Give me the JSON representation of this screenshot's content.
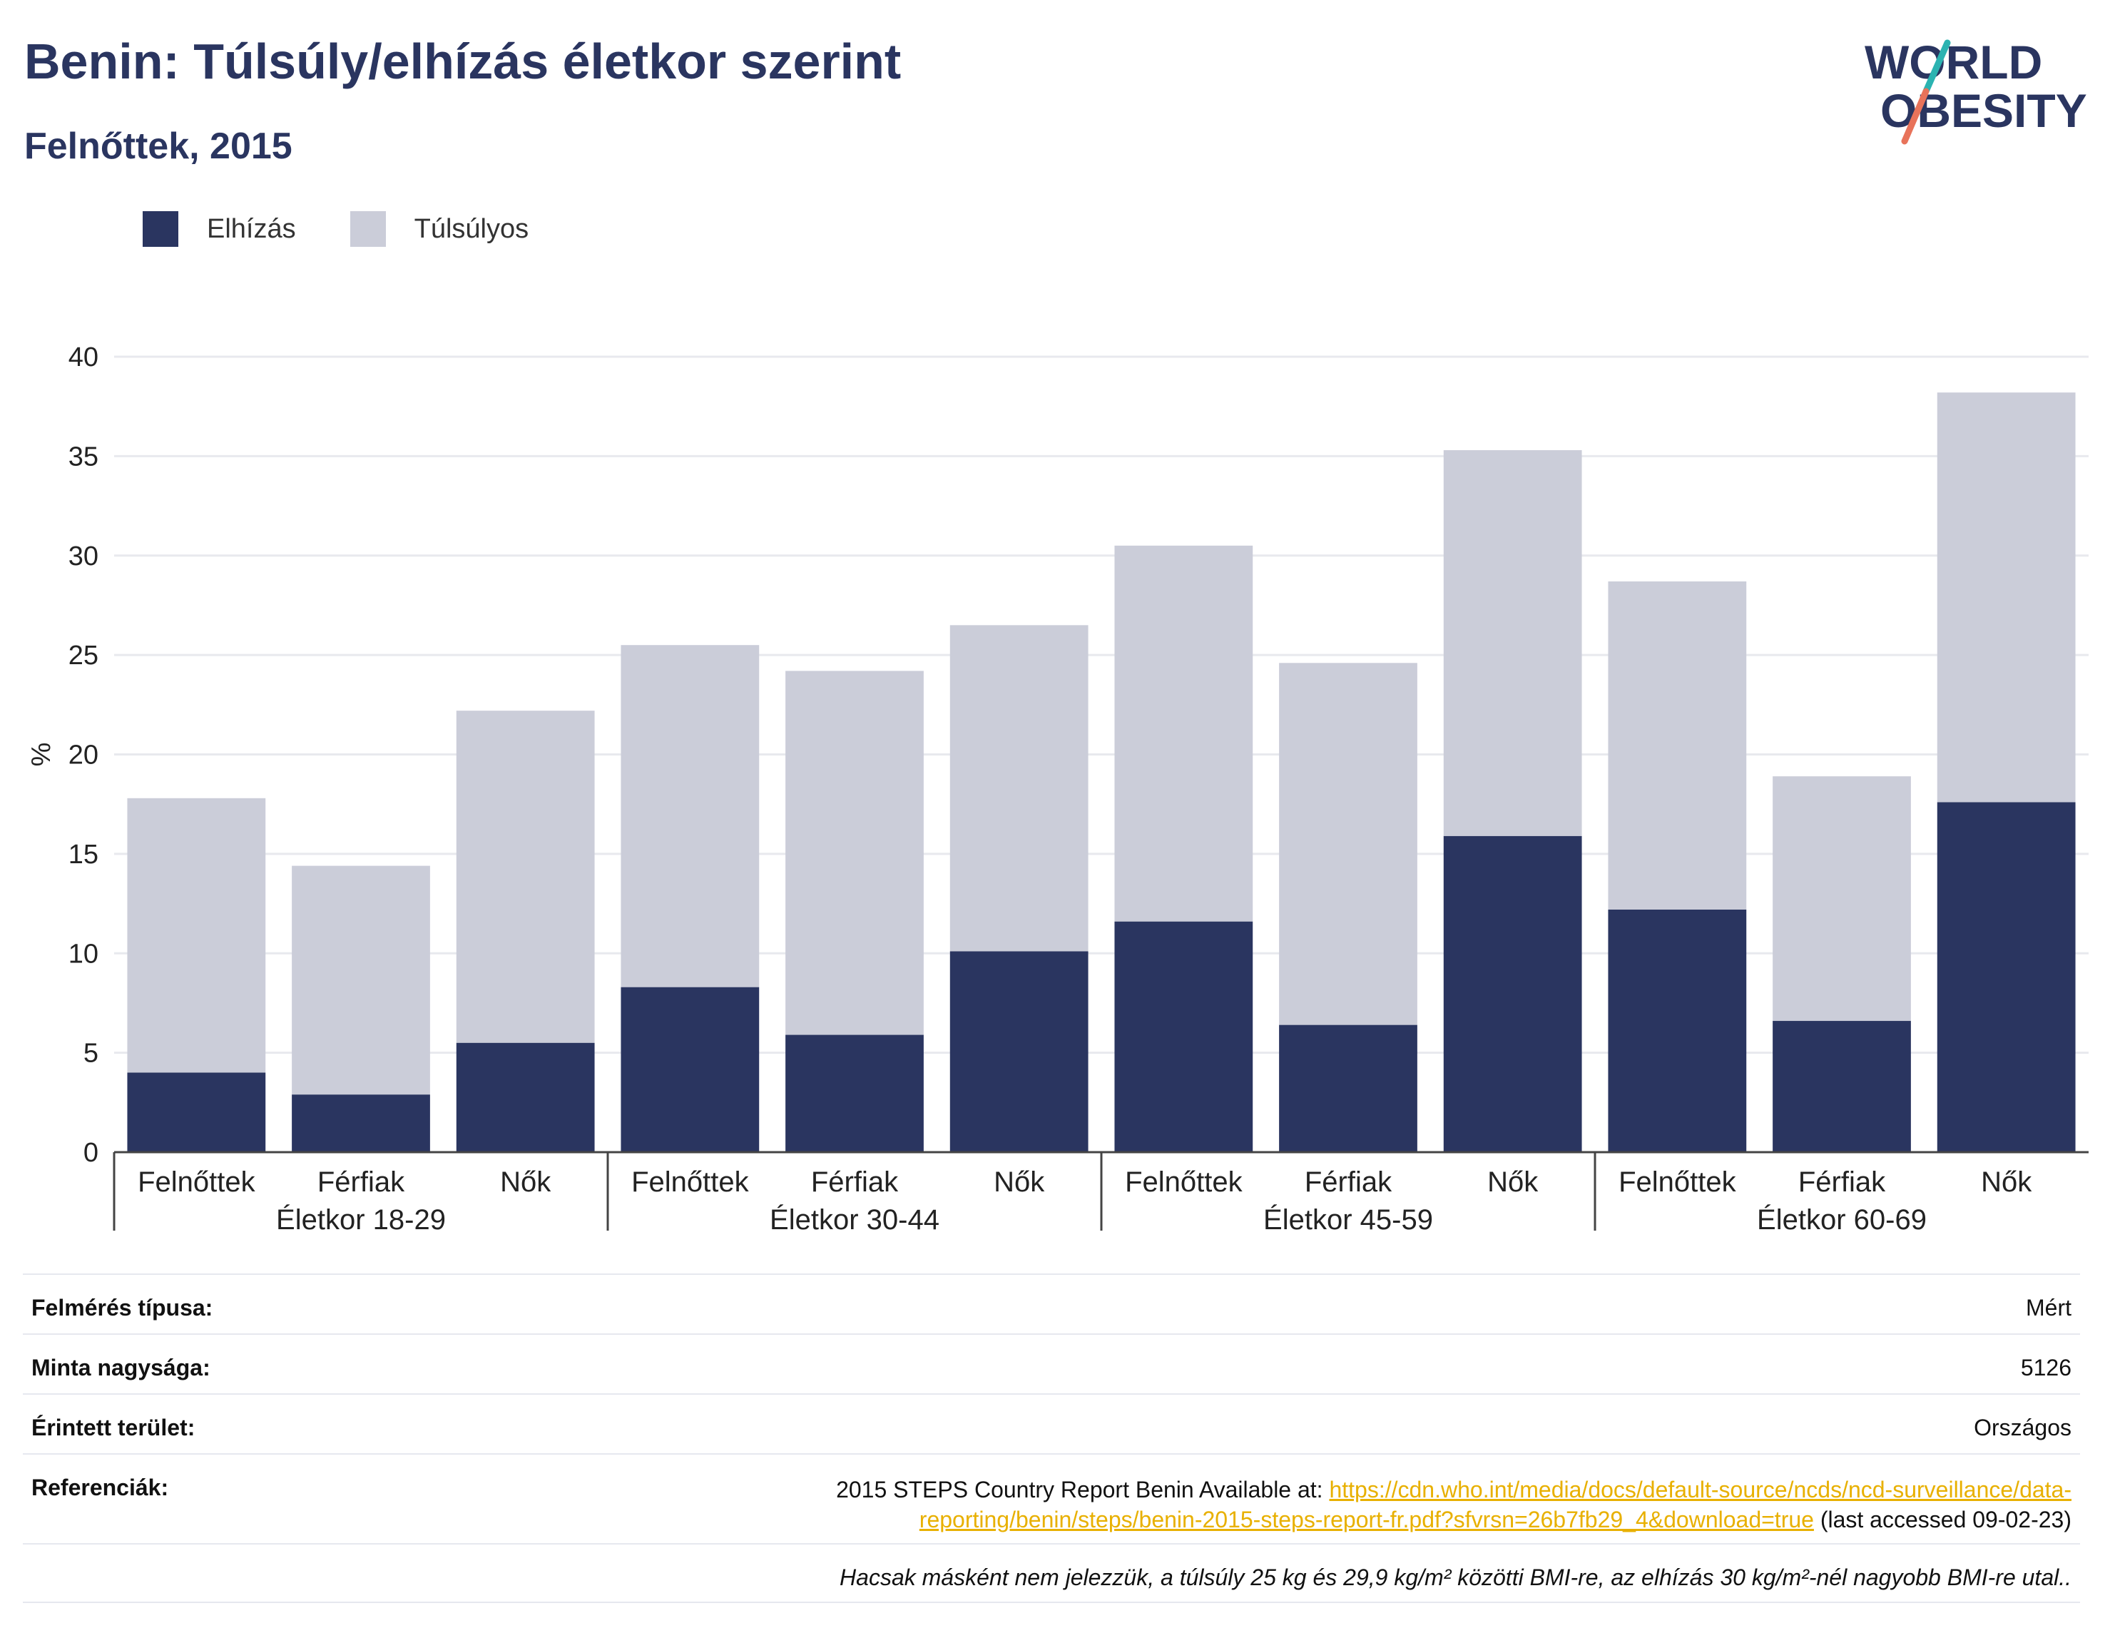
{
  "header": {
    "title": "Benin: Túlsúly/elhízás életkor szerint",
    "subtitle": "Felnőttek, 2015"
  },
  "logo": {
    "line1": "WORLD",
    "line2": "OBESITY",
    "slash_colors": [
      "#2bb3b1",
      "#e8735a"
    ],
    "text_color": "#2a3560"
  },
  "chart_data": {
    "type": "bar",
    "stacked": true,
    "ylabel": "%",
    "ylim": [
      0,
      40
    ],
    "yticks": [
      0,
      5,
      10,
      15,
      20,
      25,
      30,
      35,
      40
    ],
    "grid": true,
    "legend_position": "top-left",
    "groups": [
      "Életkor 18-29",
      "Életkor 30-44",
      "Életkor 45-59",
      "Életkor 60-69"
    ],
    "categories": [
      "Felnőttek",
      "Férfiak",
      "Nők",
      "Felnőttek",
      "Férfiak",
      "Nők",
      "Felnőttek",
      "Férfiak",
      "Nők",
      "Felnőttek",
      "Férfiak",
      "Nők"
    ],
    "series": [
      {
        "name": "Elhízás",
        "color": "#2a3560",
        "values": [
          4.0,
          2.9,
          5.5,
          8.3,
          5.9,
          10.1,
          11.6,
          6.4,
          15.9,
          12.2,
          6.6,
          17.6
        ]
      },
      {
        "name": "Túlsúlyos",
        "color": "#cbcdd9",
        "values": [
          13.8,
          11.5,
          16.7,
          17.2,
          18.3,
          16.4,
          18.9,
          18.2,
          19.4,
          16.5,
          12.3,
          20.6
        ]
      }
    ]
  },
  "info": {
    "rows": [
      {
        "label": "Felmérés típusa:",
        "value": "Mért"
      },
      {
        "label": "Minta nagysága:",
        "value": "5126"
      },
      {
        "label": "Érintett terület:",
        "value": "Országos"
      }
    ],
    "references": {
      "label": "Referenciák:",
      "prefix": "2015 STEPS Country Report Benin Available at: ",
      "link_line1": "https://cdn.who.int/media/docs/default-source/ncds/ncd-surveillance/data-",
      "link_line2": "reporting/benin/steps/benin-2015-steps-report-fr.pdf?sfvrsn=26b7fb29_4&download=true",
      "suffix": " (last accessed 09-02-23)"
    },
    "footnote": "Hacsak másként nem jelezzük, a túlsúly 25 kg és 29,9 kg/m² közötti BMI-re, az elhízás 30 kg/m²-nél nagyobb BMI-re utal.."
  }
}
